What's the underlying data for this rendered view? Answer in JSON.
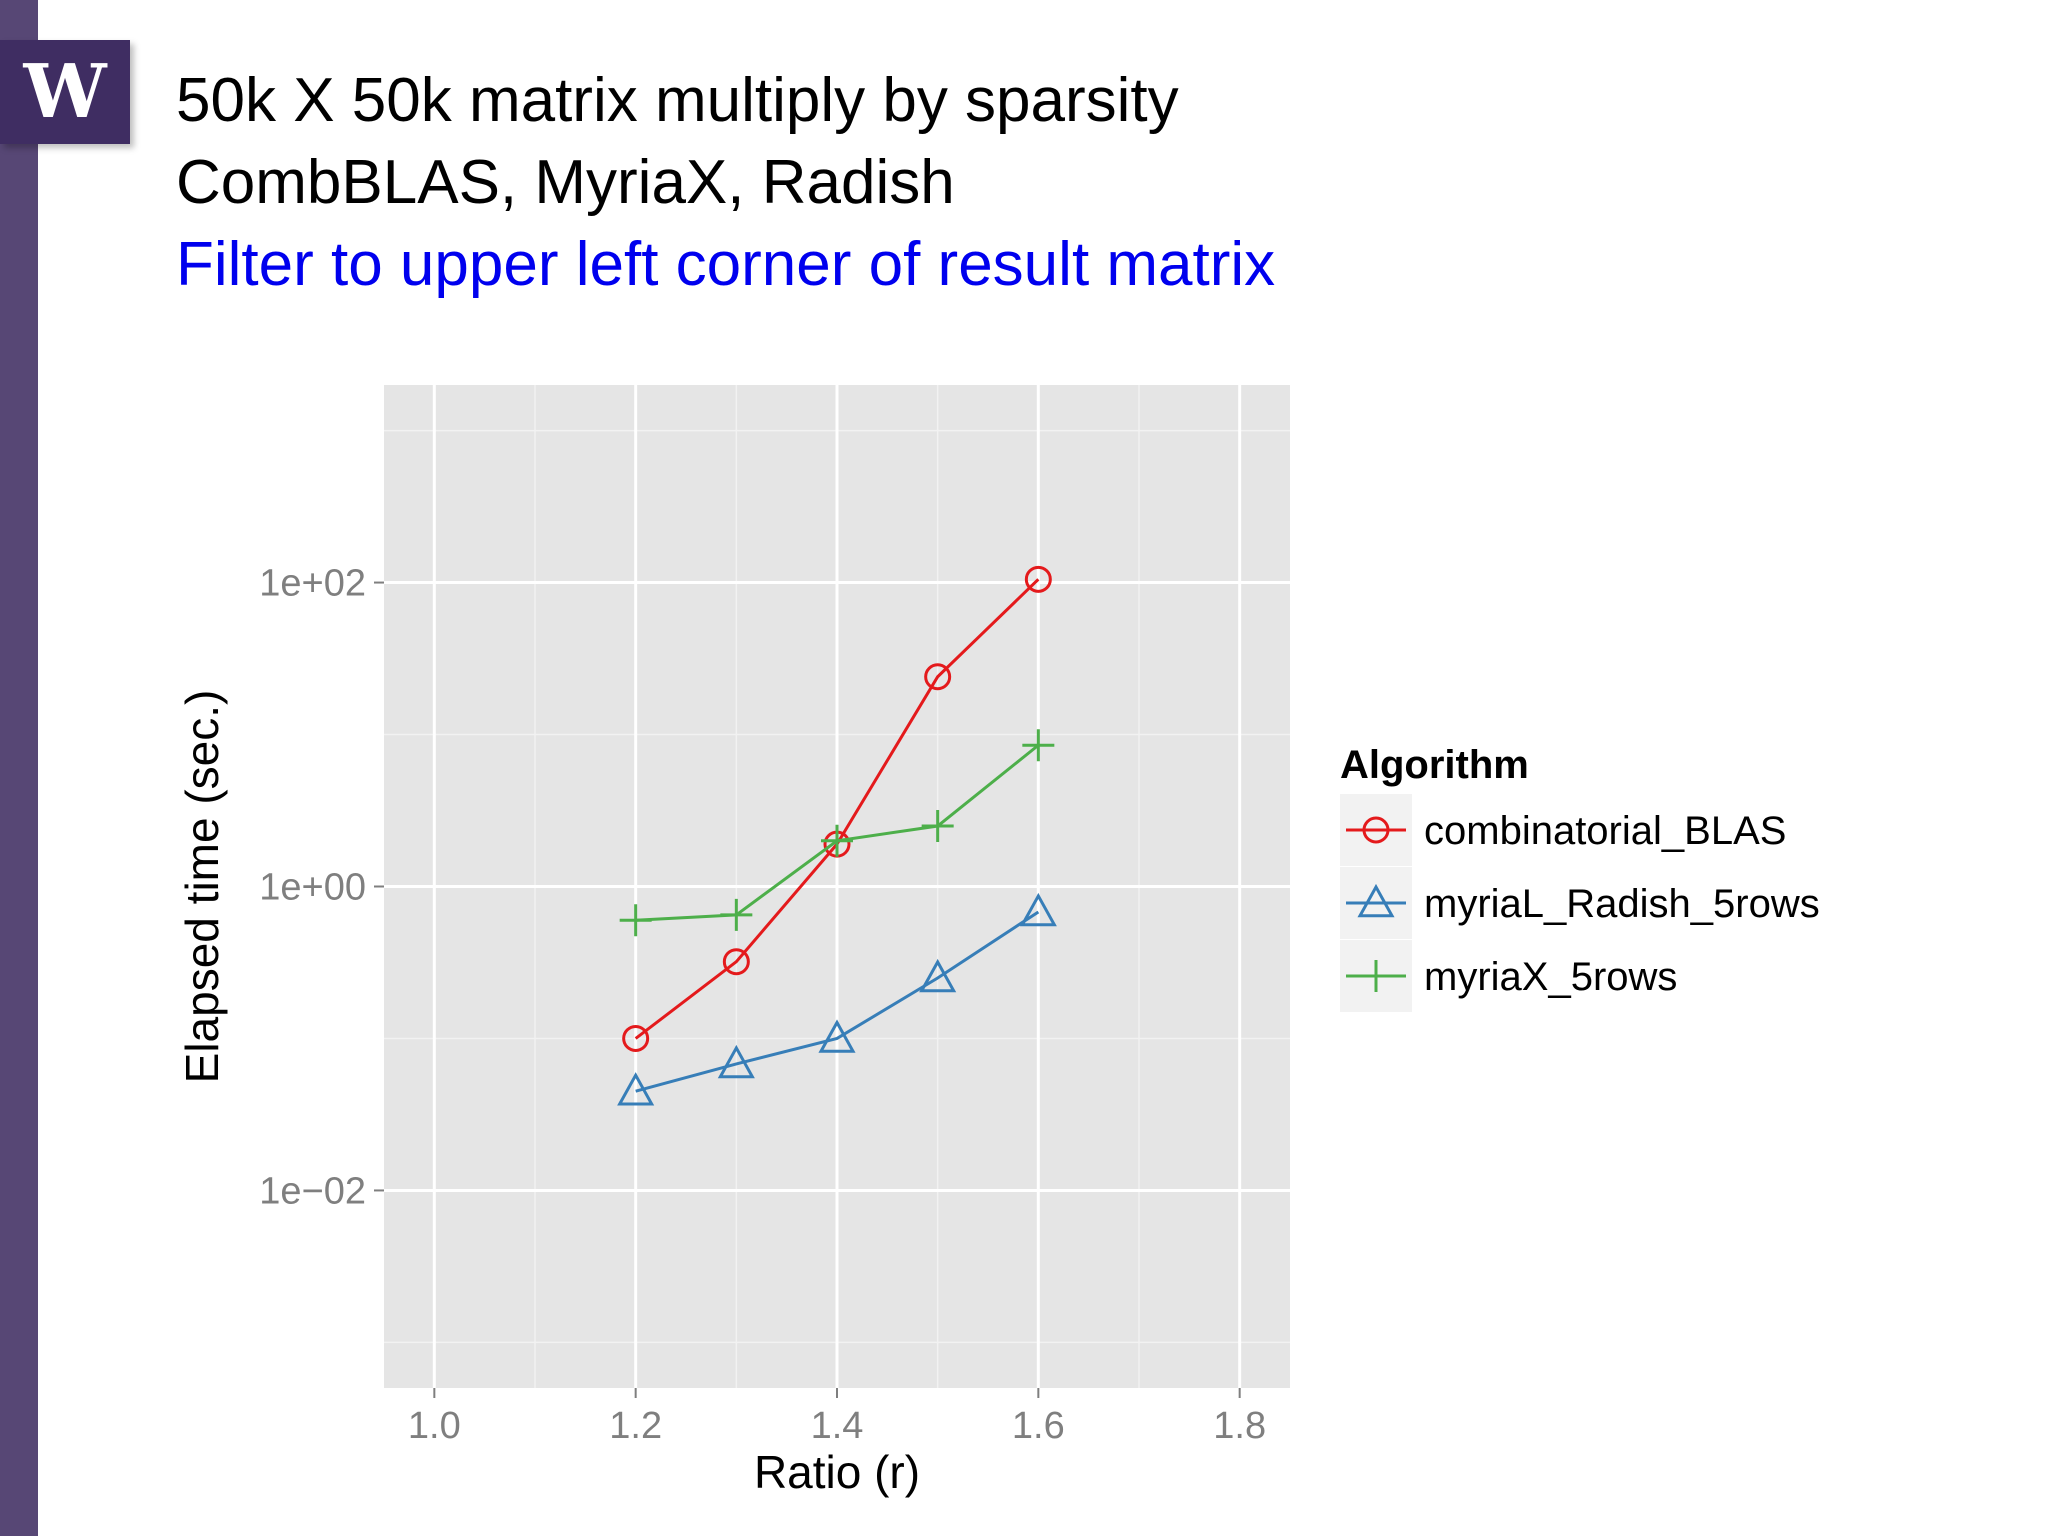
{
  "slide": {
    "logo_text": "W",
    "title_lines": [
      "50k X 50k matrix multiply by sparsity",
      "CombBLAS, MyriaX, Radish",
      "Filter to upper left corner of result matrix"
    ],
    "accent_color": "#574775",
    "highlight_color": "#0000ee"
  },
  "chart_data": {
    "type": "line",
    "xlabel": "Ratio (r)",
    "ylabel": "Elapsed time (sec.)",
    "y_scale": "log10",
    "xlim": [
      0.95,
      1.85
    ],
    "ylim_log10": [
      -3.3,
      3.3
    ],
    "x_ticks": [
      {
        "value": 1.0,
        "label": "1.0"
      },
      {
        "value": 1.2,
        "label": "1.2"
      },
      {
        "value": 1.4,
        "label": "1.4"
      },
      {
        "value": 1.6,
        "label": "1.6"
      },
      {
        "value": 1.8,
        "label": "1.8"
      }
    ],
    "y_ticks": [
      {
        "value": 100,
        "label": "1e+02"
      },
      {
        "value": 1,
        "label": "1e+00"
      },
      {
        "value": 0.01,
        "label": "1e−02"
      }
    ],
    "grid": true,
    "legend": {
      "title": "Algorithm",
      "placement": "right"
    },
    "series": [
      {
        "name": "combinatorial_BLAS",
        "color": "#e41a1c",
        "marker": "circle",
        "x": [
          1.2,
          1.3,
          1.4,
          1.5,
          1.6
        ],
        "y": [
          0.1,
          0.32,
          1.9,
          24,
          105
        ]
      },
      {
        "name": "myriaL_Radish_5rows",
        "color": "#377eb8",
        "marker": "triangle",
        "x": [
          1.2,
          1.3,
          1.4,
          1.5,
          1.6
        ],
        "y": [
          0.045,
          0.068,
          0.1,
          0.25,
          0.68
        ]
      },
      {
        "name": "myriaX_5rows",
        "color": "#4daf4a",
        "marker": "plus",
        "x": [
          1.2,
          1.3,
          1.4,
          1.5,
          1.6
        ],
        "y": [
          0.6,
          0.65,
          2.0,
          2.5,
          8.5
        ]
      }
    ]
  }
}
